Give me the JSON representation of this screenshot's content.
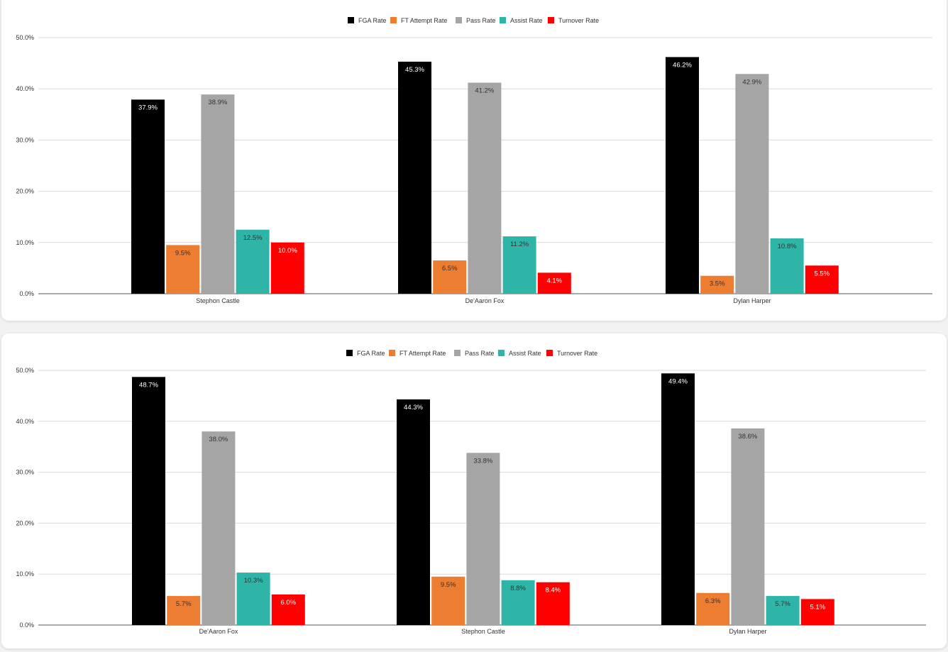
{
  "chart_data": [
    {
      "type": "bar",
      "categories": [
        "Stephon Castle",
        "De'Aaron Fox",
        "Dylan Harper"
      ],
      "series": [
        {
          "name": "FGA Rate",
          "values": [
            37.9,
            45.3,
            46.2
          ],
          "labels": [
            "37.9%",
            "45.3%",
            "46.2%"
          ]
        },
        {
          "name": "FT Attempt Rate",
          "values": [
            9.5,
            6.5,
            3.5
          ],
          "labels": [
            "9.5%",
            "6.5%",
            "3.5%"
          ]
        },
        {
          "name": "Pass Rate",
          "values": [
            38.9,
            41.2,
            42.9
          ],
          "labels": [
            "38.9%",
            "41.2%",
            "42.9%"
          ]
        },
        {
          "name": "Assist Rate",
          "values": [
            12.5,
            11.2,
            10.8
          ],
          "labels": [
            "12.5%",
            "11.2%",
            "10.8%"
          ]
        },
        {
          "name": "Turnover Rate",
          "values": [
            10.0,
            4.1,
            5.5
          ],
          "labels": [
            "10.0%",
            "4.1%",
            "5.5%"
          ]
        }
      ],
      "ylim": [
        0,
        50
      ],
      "yticks": [
        "0.0%",
        "10.0%",
        "20.0%",
        "30.0%",
        "40.0%",
        "50.0%"
      ],
      "grid": true,
      "legend_position": "top-center"
    },
    {
      "type": "bar",
      "categories": [
        "De'Aaron Fox",
        "Stephon Castle",
        "Dylan Harper"
      ],
      "series": [
        {
          "name": "FGA Rate",
          "values": [
            48.7,
            44.3,
            49.4
          ],
          "labels": [
            "48.7%",
            "44.3%",
            "49.4%"
          ]
        },
        {
          "name": "FT Attempt Rate",
          "values": [
            5.7,
            9.5,
            6.3
          ],
          "labels": [
            "5.7%",
            "9.5%",
            "6.3%"
          ]
        },
        {
          "name": "Pass Rate",
          "values": [
            38.0,
            33.8,
            38.6
          ],
          "labels": [
            "38.0%",
            "33.8%",
            "38.6%"
          ]
        },
        {
          "name": "Assist Rate",
          "values": [
            10.3,
            8.8,
            5.7
          ],
          "labels": [
            "10.3%",
            "8.8%",
            "5.7%"
          ]
        },
        {
          "name": "Turnover Rate",
          "values": [
            6.0,
            8.4,
            5.1
          ],
          "labels": [
            "6.0%",
            "8.4%",
            "5.1%"
          ]
        }
      ],
      "ylim": [
        0,
        50
      ],
      "yticks": [
        "0.0%",
        "10.0%",
        "20.0%",
        "30.0%",
        "40.0%",
        "50.0%"
      ],
      "grid": true,
      "legend_position": "top-center"
    }
  ],
  "colors": {
    "FGA Rate": "#000000",
    "FT Attempt Rate": "#ed7d31",
    "Pass Rate": "#a5a5a5",
    "Assist Rate": "#2fb4a8",
    "Turnover Rate": "#ff0000",
    "label_light": "#ffffff",
    "label_dark": "#333333"
  }
}
